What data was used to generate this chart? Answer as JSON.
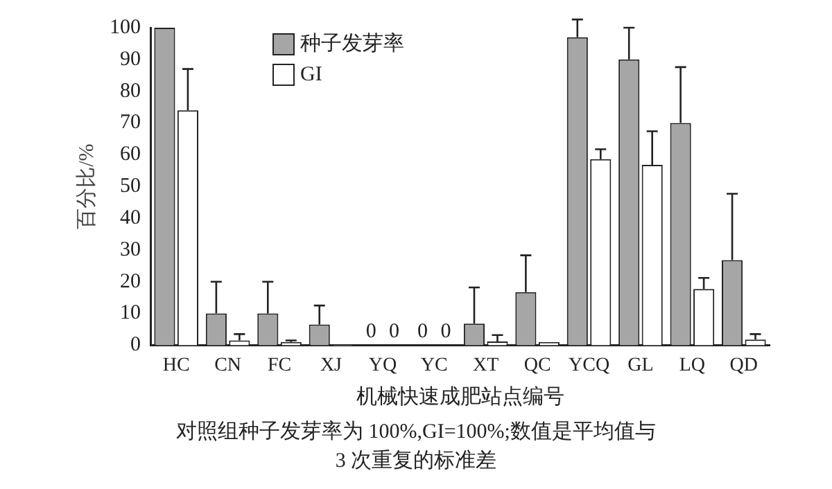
{
  "chart_data": {
    "type": "bar",
    "xlabel": "机械快速成肥站点编号",
    "ylabel": "百分比/%",
    "categories": [
      "HC",
      "CN",
      "FC",
      "XJ",
      "YQ",
      "YC",
      "XT",
      "QC",
      "YCQ",
      "GL",
      "LQ",
      "QD"
    ],
    "series": [
      {
        "name": "种子发芽率",
        "color": "#a6a6a6",
        "values": [
          100,
          10,
          10,
          6.5,
          0,
          0,
          6.8,
          16.7,
          97,
          90,
          70,
          26.8
        ],
        "errors": [
          null,
          [
            10,
            20
          ],
          [
            10,
            20
          ],
          [
            6.5,
            12.5
          ],
          null,
          null,
          [
            6.8,
            18.2
          ],
          [
            16.7,
            28.3
          ],
          [
            97,
            102.6
          ],
          [
            90,
            100
          ],
          [
            70,
            87.6
          ],
          [
            26.8,
            47.7
          ]
        ],
        "value_labels": [
          null,
          null,
          null,
          null,
          "0",
          "0",
          null,
          null,
          null,
          null,
          null,
          null
        ]
      },
      {
        "name": "GI",
        "color": "#ffffff",
        "values": [
          74,
          1.5,
          1,
          0.2,
          0,
          0,
          1.2,
          1,
          58.6,
          56.8,
          17.7,
          1.8
        ],
        "errors": [
          [
            74,
            87
          ],
          [
            1.5,
            3.5
          ],
          [
            1,
            1.5
          ],
          null,
          null,
          null,
          [
            1.2,
            3.2
          ],
          null,
          [
            58.6,
            61.7
          ],
          [
            56.8,
            67.4
          ],
          [
            17.7,
            21.2
          ],
          [
            1.8,
            3.5
          ]
        ],
        "value_labels": [
          null,
          null,
          null,
          null,
          "0",
          "0",
          null,
          null,
          null,
          null,
          null,
          null
        ]
      }
    ],
    "ylim": [
      0,
      100
    ],
    "yticks": [
      0,
      10,
      20,
      30,
      40,
      50,
      60,
      70,
      80,
      90,
      100
    ],
    "grid": false,
    "legend": "top left",
    "annotations": [
      "对照组种子发芽率为 100%,GI=100%;数值是平均值与 3 次重复的标准差"
    ]
  }
}
